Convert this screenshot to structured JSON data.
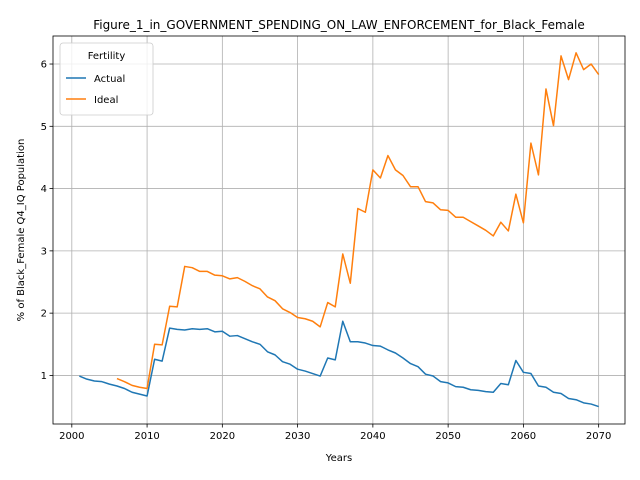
{
  "chart_data": {
    "type": "line",
    "title": "Figure_1_in_GOVERNMENT_SPENDING_ON_LAW_ENFORCEMENT_for_Black_Female",
    "xlabel": "Years",
    "ylabel": "% of Black_Female Q4_IQ Population",
    "xlim": [
      1997.5,
      2073.5
    ],
    "ylim": [
      0.22,
      6.45
    ],
    "xticks": [
      2000,
      2010,
      2020,
      2030,
      2040,
      2050,
      2060,
      2070
    ],
    "yticks": [
      1,
      2,
      3,
      4,
      5,
      6
    ],
    "grid": true,
    "legend": {
      "title": "Fertility",
      "placement": "top-left"
    },
    "series": [
      {
        "name": "Actual",
        "color": "#1f77b4",
        "x": [
          2001,
          2002,
          2003,
          2004,
          2005,
          2006,
          2007,
          2008,
          2009,
          2010,
          2011,
          2012,
          2013,
          2014,
          2015,
          2016,
          2017,
          2018,
          2019,
          2020,
          2021,
          2022,
          2023,
          2024,
          2025,
          2026,
          2027,
          2028,
          2029,
          2030,
          2031,
          2032,
          2033,
          2034,
          2035,
          2036,
          2037,
          2038,
          2039,
          2040,
          2041,
          2042,
          2043,
          2044,
          2045,
          2046,
          2047,
          2048,
          2049,
          2050,
          2051,
          2052,
          2053,
          2054,
          2055,
          2056,
          2057,
          2058,
          2059,
          2060,
          2061,
          2062,
          2063,
          2064,
          2065,
          2066,
          2067,
          2068,
          2069,
          2070
        ],
        "y": [
          0.99,
          0.94,
          0.91,
          0.9,
          0.86,
          0.83,
          0.79,
          0.73,
          0.7,
          0.67,
          1.26,
          1.23,
          1.76,
          1.74,
          1.73,
          1.75,
          1.74,
          1.75,
          1.7,
          1.71,
          1.63,
          1.64,
          1.59,
          1.54,
          1.5,
          1.38,
          1.33,
          1.22,
          1.18,
          1.1,
          1.07,
          1.03,
          0.99,
          1.28,
          1.25,
          1.87,
          1.54,
          1.54,
          1.52,
          1.48,
          1.47,
          1.41,
          1.36,
          1.28,
          1.19,
          1.14,
          1.02,
          0.99,
          0.9,
          0.88,
          0.82,
          0.81,
          0.77,
          0.76,
          0.74,
          0.73,
          0.87,
          0.85,
          1.24,
          1.05,
          1.03,
          0.83,
          0.81,
          0.73,
          0.71,
          0.63,
          0.61,
          0.56,
          0.54,
          0.5
        ]
      },
      {
        "name": "Ideal",
        "color": "#ff7f0e",
        "x": [
          2006,
          2007,
          2008,
          2009,
          2010,
          2011,
          2012,
          2013,
          2014,
          2015,
          2016,
          2017,
          2018,
          2019,
          2020,
          2021,
          2022,
          2023,
          2024,
          2025,
          2026,
          2027,
          2028,
          2029,
          2030,
          2031,
          2032,
          2033,
          2034,
          2035,
          2036,
          2037,
          2038,
          2039,
          2040,
          2041,
          2042,
          2043,
          2044,
          2045,
          2046,
          2047,
          2048,
          2049,
          2050,
          2051,
          2052,
          2053,
          2054,
          2055,
          2056,
          2057,
          2058,
          2059,
          2060,
          2061,
          2062,
          2063,
          2064,
          2065,
          2066,
          2067,
          2068,
          2069,
          2070
        ],
        "y": [
          0.95,
          0.9,
          0.84,
          0.81,
          0.79,
          1.5,
          1.49,
          2.11,
          2.1,
          2.75,
          2.73,
          2.67,
          2.67,
          2.61,
          2.6,
          2.55,
          2.57,
          2.51,
          2.44,
          2.39,
          2.26,
          2.2,
          2.07,
          2.01,
          1.93,
          1.91,
          1.87,
          1.78,
          2.17,
          2.1,
          2.95,
          2.48,
          3.68,
          3.62,
          4.3,
          4.17,
          4.53,
          4.3,
          4.21,
          4.03,
          4.03,
          3.79,
          3.77,
          3.66,
          3.65,
          3.54,
          3.54,
          3.47,
          3.4,
          3.33,
          3.24,
          3.46,
          3.32,
          3.91,
          3.45,
          4.73,
          4.22,
          5.6,
          5.01,
          6.13,
          5.75,
          6.18,
          5.91,
          6.0,
          5.83
        ]
      }
    ]
  }
}
